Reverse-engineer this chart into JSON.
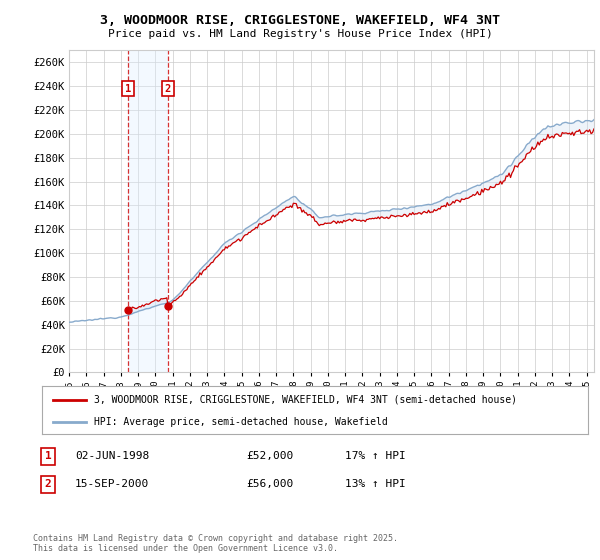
{
  "title": "3, WOODMOOR RISE, CRIGGLESTONE, WAKEFIELD, WF4 3NT",
  "subtitle": "Price paid vs. HM Land Registry's House Price Index (HPI)",
  "ylabel_ticks": [
    "£0",
    "£20K",
    "£40K",
    "£60K",
    "£80K",
    "£100K",
    "£120K",
    "£140K",
    "£160K",
    "£180K",
    "£200K",
    "£220K",
    "£240K",
    "£260K"
  ],
  "ytick_values": [
    0,
    20000,
    40000,
    60000,
    80000,
    100000,
    120000,
    140000,
    160000,
    180000,
    200000,
    220000,
    240000,
    260000
  ],
  "ylim": [
    0,
    270000
  ],
  "year_start": 1995,
  "year_end": 2025,
  "sale1_year": 1998.42,
  "sale1_price": 52000,
  "sale1_label": "1",
  "sale2_year": 2000.71,
  "sale2_price": 56000,
  "sale2_label": "2",
  "legend_property": "3, WOODMOOR RISE, CRIGGLESTONE, WAKEFIELD, WF4 3NT (semi-detached house)",
  "legend_hpi": "HPI: Average price, semi-detached house, Wakefield",
  "ann1_label": "1",
  "ann1_date": "02-JUN-1998",
  "ann1_price": "£52,000",
  "ann1_hpi": "17% ↑ HPI",
  "ann2_label": "2",
  "ann2_date": "15-SEP-2000",
  "ann2_price": "£56,000",
  "ann2_hpi": "13% ↑ HPI",
  "copyright": "Contains HM Land Registry data © Crown copyright and database right 2025.\nThis data is licensed under the Open Government Licence v3.0.",
  "property_color": "#cc0000",
  "hpi_color": "#88aacc",
  "background_color": "#ffffff",
  "grid_color": "#cccccc",
  "shade_color": "#ccddf0",
  "vspan_color": "#ddeeff"
}
